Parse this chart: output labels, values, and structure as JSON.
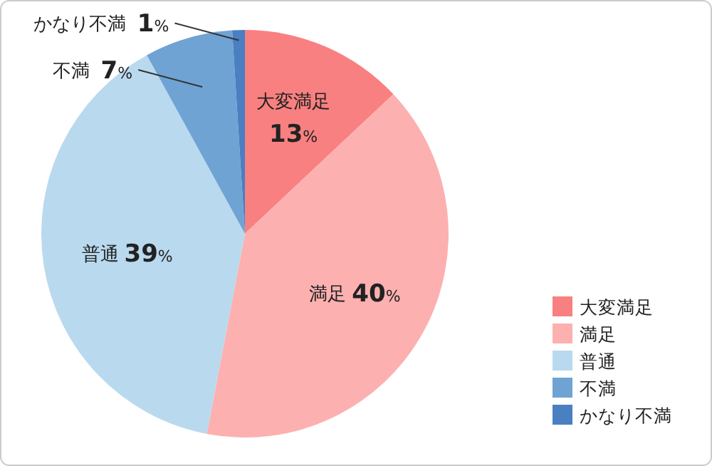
{
  "chart_data": {
    "type": "pie",
    "categories": [
      "大変満足",
      "満足",
      "普通",
      "不満",
      "かなり不満"
    ],
    "values": [
      13,
      40,
      39,
      7,
      1
    ],
    "value_labels": [
      "13%",
      "40%",
      "39%",
      "7%",
      "1%"
    ],
    "colors": [
      "#f98080",
      "#fdb0b0",
      "#b9d9ee",
      "#6fa3d4",
      "#4a7fc1"
    ],
    "legend": "bottom right"
  }
}
